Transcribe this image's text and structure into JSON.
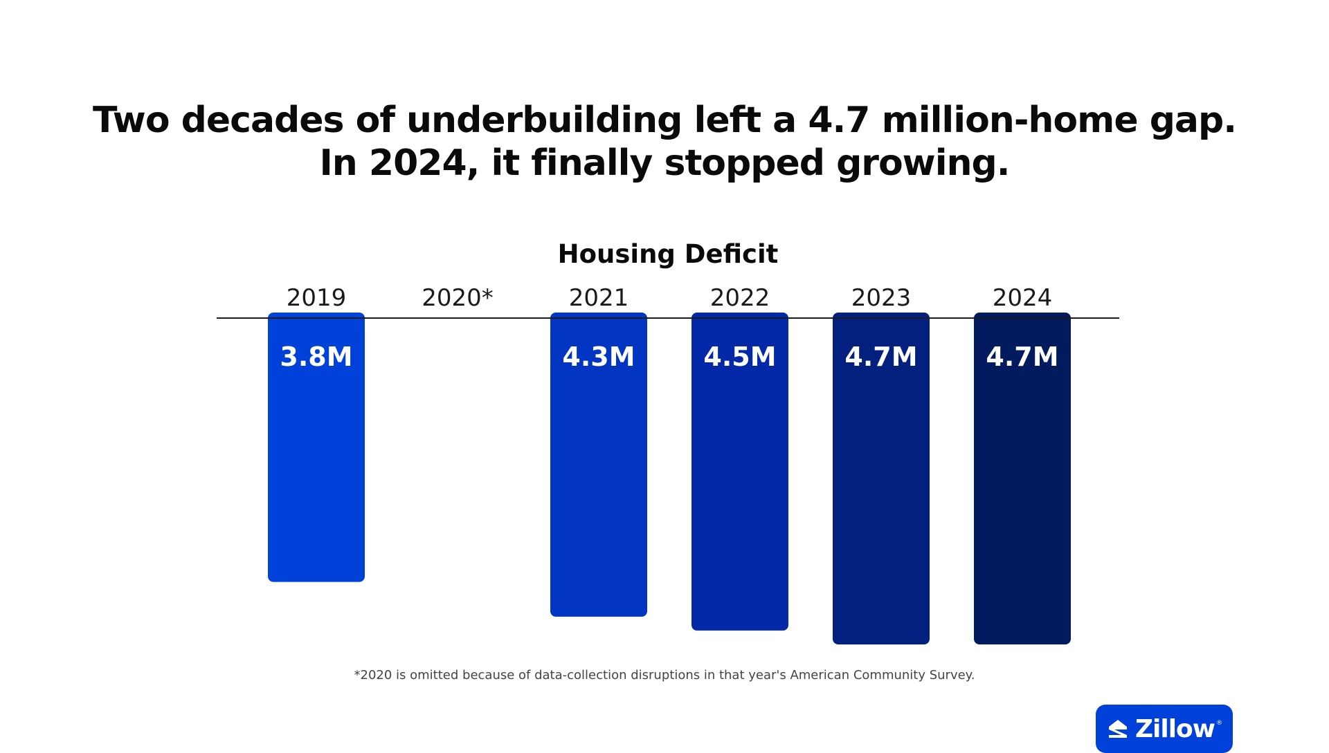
{
  "headline": {
    "line1": "Two decades of underbuilding left a 4.7 million-home gap.",
    "line2": "In 2024, it finally stopped growing."
  },
  "chart_data": {
    "type": "bar",
    "title": "Housing Deficit",
    "orientation": "downward-from-top-axis",
    "categories": [
      "2019",
      "2020*",
      "2021",
      "2022",
      "2023",
      "2024"
    ],
    "values": [
      3.8,
      null,
      4.3,
      4.5,
      4.7,
      4.7
    ],
    "value_labels": [
      "3.8M",
      "",
      "4.3M",
      "4.5M",
      "4.7M",
      "4.7M"
    ],
    "unit": "million homes",
    "ylim": [
      0,
      4.7
    ],
    "grid": false,
    "legend": "none",
    "colors": [
      "#0041d9",
      null,
      "#0335c3",
      "#0329a8",
      "#03207f",
      "#021a5e"
    ]
  },
  "footnote": "*2020 is omitted because of data-collection disruptions in that year's American Community Survey.",
  "logo": {
    "icon": "zillow-z-icon",
    "text": "Zillow",
    "reg": "®",
    "color": "#0041d9"
  }
}
